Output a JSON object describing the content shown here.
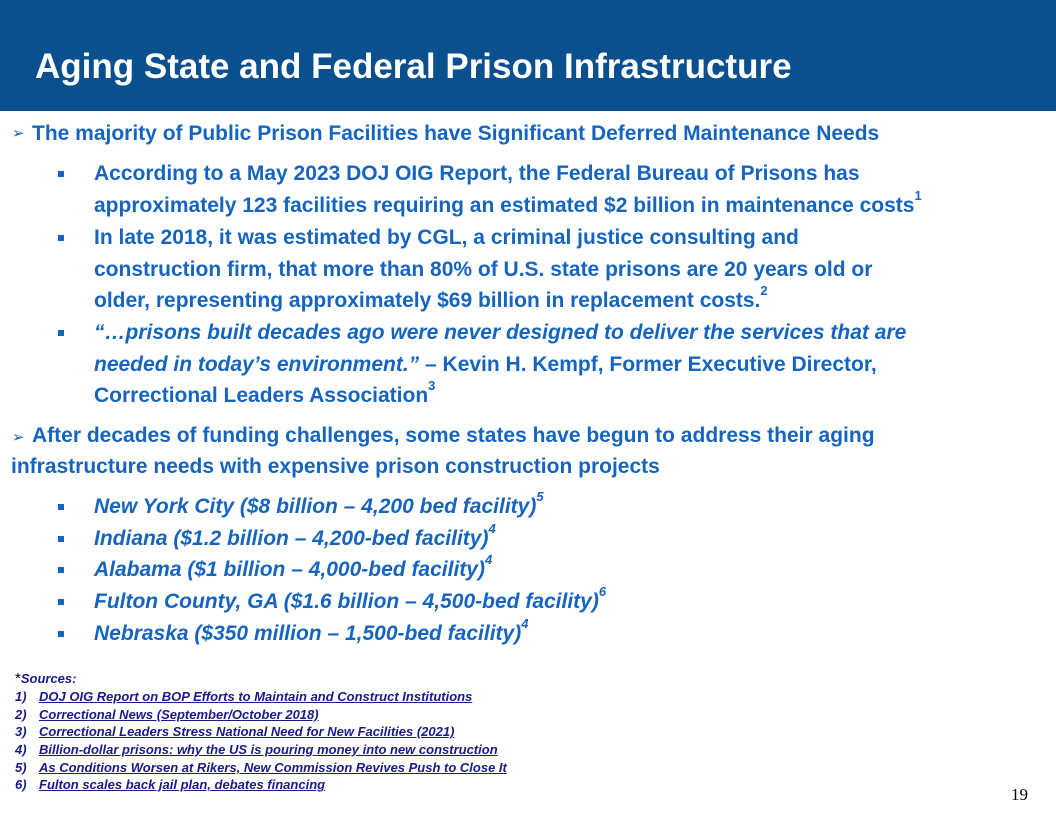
{
  "header": {
    "title": "Aging State and Federal Prison Infrastructure"
  },
  "section1": {
    "arrow": "➢",
    "heading": "The majority of Public Prison Facilities have Significant Deferred Maintenance Needs",
    "bullets": [
      {
        "lines": [
          "According to a May 2023 DOJ OIG Report, the Federal Bureau of Prisons has",
          "approximately 123 facilities requiring an estimated $2 billion in maintenance costs"
        ],
        "sup": "1"
      },
      {
        "lines": [
          "In late 2018, it was estimated by CGL, a criminal justice consulting and",
          "construction firm, that more than 80% of U.S. state prisons are 20 years old or",
          "older, representing approximately $69 billion in replacement costs."
        ],
        "sup": "2"
      },
      {
        "quote_line1": "“…prisons built decades ago were never designed to deliver the services that are",
        "quote_line2": "needed in today’s environment.”",
        "attribution_line2": " – Kevin H. Kempf, Former Executive Director,",
        "line3": "Correctional Leaders Association",
        "sup": "3"
      }
    ]
  },
  "section2": {
    "arrow": "➢",
    "heading_line1": "After decades of funding challenges, some states have begun to address their aging",
    "heading_line2": "infrastructure needs with expensive prison construction projects",
    "projects": [
      {
        "text": "New York City ($8 billion – 4,200 bed facility)",
        "sup": "5"
      },
      {
        "text": "Indiana ($1.2 billion – 4,200-bed facility)",
        "sup": "4"
      },
      {
        "text": "Alabama ($1 billion – 4,000-bed facility)",
        "sup": "4"
      },
      {
        "text": "Fulton County, GA ($1.6 billion – 4,500-bed facility)",
        "sup": "6"
      },
      {
        "text": "Nebraska ($350 million – 1,500-bed facility)",
        "sup": "4"
      }
    ]
  },
  "sources": {
    "star": "*",
    "label": "Sources:",
    "items": [
      {
        "num": "1)",
        "text": "DOJ OIG Report on BOP Efforts to Maintain and Construct Institutions"
      },
      {
        "num": "2)",
        "text": "Correctional News (September/October 2018)"
      },
      {
        "num": "3)",
        "text": "Correctional Leaders Stress National Need for New Facilities (2021)"
      },
      {
        "num": "4)",
        "text": "Billion-dollar prisons: why the US is pouring money into new construction"
      },
      {
        "num": "5)",
        "text": "As Conditions Worsen at Rikers, New Commission Revives Push to Close It"
      },
      {
        "num": "6)",
        "text": "Fulton scales back jail plan, debates financing"
      }
    ]
  },
  "page_number": "19",
  "colors": {
    "header_bg": "#0a4f8e",
    "accent": "#1565c0",
    "source_link": "#1a1a8a"
  }
}
